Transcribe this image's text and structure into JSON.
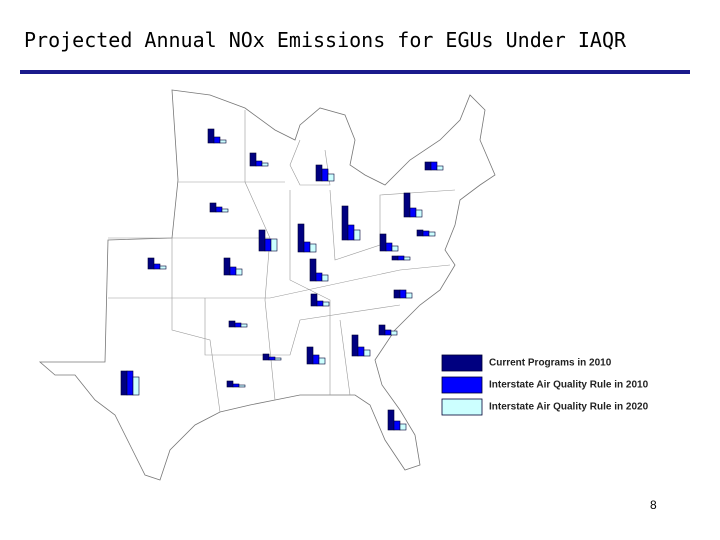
{
  "title": "Projected Annual NOx Emissions for EGUs Under IAQR",
  "page_number": 8,
  "chart_data": {
    "type": "bar",
    "series": [
      {
        "name": "Current Programs in 2010",
        "color": "#000080",
        "values": [
          14,
          13,
          16,
          8,
          24,
          9,
          21,
          28,
          34,
          6,
          17,
          4,
          11,
          17,
          22,
          8,
          12,
          6,
          10,
          6,
          17,
          21,
          24,
          6,
          20
        ]
      },
      {
        "name": "Interstate Air Quality Rule in 2010",
        "color": "#0000ff",
        "values": [
          6,
          5,
          12,
          8,
          9,
          5,
          12,
          10,
          15,
          5,
          8,
          4,
          5,
          8,
          8,
          8,
          5,
          4,
          5,
          3,
          9,
          9,
          24,
          3,
          9
        ]
      },
      {
        "name": "Interstate Air Quality Rule in 2020",
        "color": "#ccffff",
        "values": [
          3,
          3,
          7,
          4,
          7,
          3,
          12,
          8,
          10,
          4,
          5,
          3,
          3,
          6,
          6,
          5,
          4,
          3,
          4,
          2,
          6,
          6,
          18,
          2,
          6
        ]
      }
    ]
  }
}
